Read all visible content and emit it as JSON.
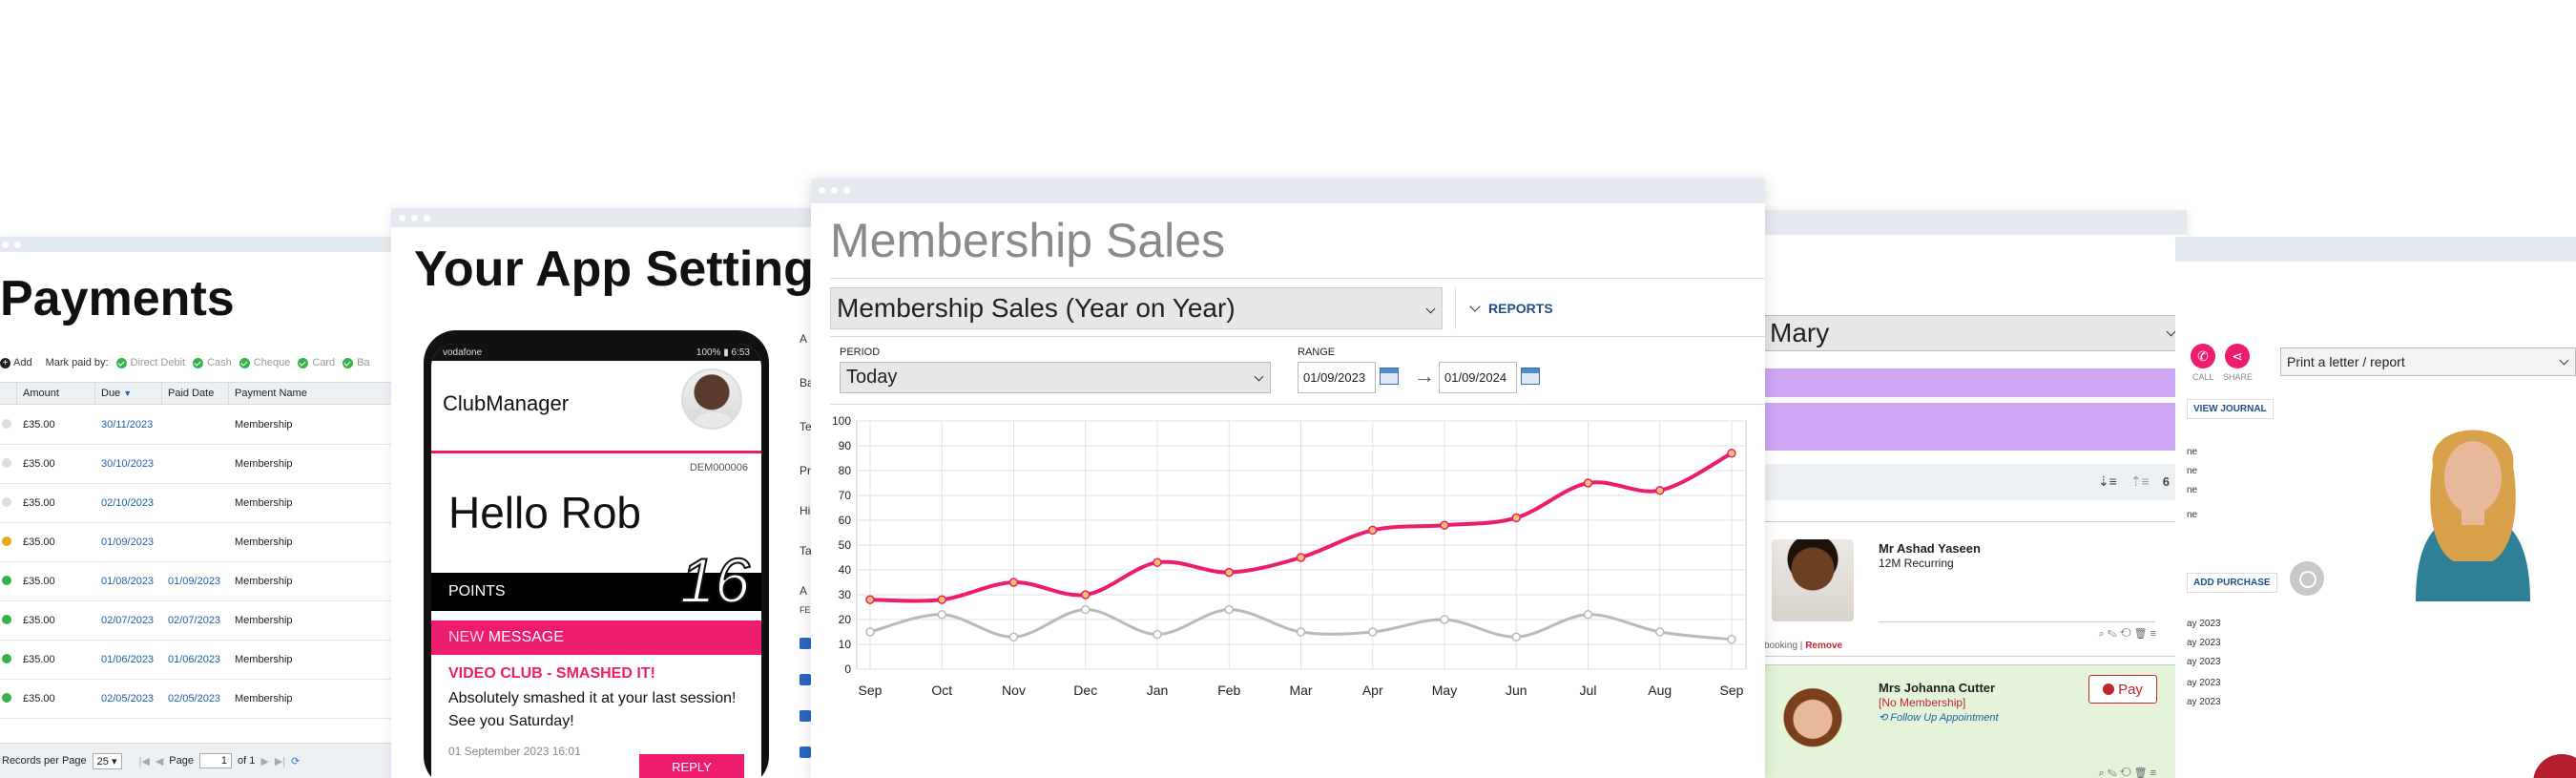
{
  "payments": {
    "title": "Payments",
    "toolbar": {
      "add_label": "Add",
      "mark_paid_label": "Mark paid by:",
      "methods": [
        "Direct Debit",
        "Cash",
        "Cheque",
        "Card",
        "Ba"
      ]
    },
    "columns": [
      "Amount",
      "Due",
      "Paid Date",
      "Payment Name"
    ],
    "rows": [
      {
        "status": "none",
        "amount": "£35.00",
        "due": "30/11/2023",
        "paid": "",
        "name": "Membership"
      },
      {
        "status": "none",
        "amount": "£35.00",
        "due": "30/10/2023",
        "paid": "",
        "name": "Membership"
      },
      {
        "status": "none",
        "amount": "£35.00",
        "due": "02/10/2023",
        "paid": "",
        "name": "Membership"
      },
      {
        "status": "pending",
        "amount": "£35.00",
        "due": "01/09/2023",
        "paid": "",
        "name": "Membership"
      },
      {
        "status": "paid",
        "amount": "£35.00",
        "due": "01/08/2023",
        "paid": "01/09/2023",
        "name": "Membership"
      },
      {
        "status": "paid",
        "amount": "£35.00",
        "due": "02/07/2023",
        "paid": "02/07/2023",
        "name": "Membership"
      },
      {
        "status": "paid",
        "amount": "£35.00",
        "due": "01/06/2023",
        "paid": "01/06/2023",
        "name": "Membership"
      },
      {
        "status": "paid",
        "amount": "£35.00",
        "due": "02/05/2023",
        "paid": "02/05/2023",
        "name": "Membership"
      }
    ],
    "footer": {
      "records_label": "Records per Page",
      "records_value": "25",
      "page_label": "Page",
      "page_value": "1",
      "of_label": "of 1"
    },
    "status_colors": {
      "none": "#dddddd",
      "pending": "#e3a81b",
      "paid": "#36b24a"
    }
  },
  "app_settings": {
    "title": "Your App Settings",
    "phone": {
      "carrier": "vodafone",
      "battery": "100%",
      "time": "6:53",
      "logo": "ClubManager",
      "member_id": "DEM000006",
      "greeting": "Hello Rob",
      "points_label": "POINTS",
      "points_value": "16",
      "message_new": "NEW",
      "message_label": "MESSAGE",
      "message_title": "VIDEO CLUB - SMASHED IT!",
      "message_body": "Absolutely smashed it at your last session! See you Saturday!",
      "message_date": "01 September 2023 16:01",
      "reply_label": "REPLY"
    },
    "side_labels": [
      "A",
      "Ba",
      "Te",
      "Pr",
      "Hi",
      "Ta",
      "A",
      "FE"
    ]
  },
  "sales": {
    "title": "Membership Sales",
    "report_select": "Membership Sales (Year on Year)",
    "reports_label": "REPORTS",
    "period_label": "PERIOD",
    "period_value": "Today",
    "range_label": "RANGE",
    "range_from": "01/09/2023",
    "range_to": "01/09/2024",
    "range_arrow": "→"
  },
  "chart_data": {
    "type": "line",
    "categories": [
      "Sep",
      "Oct",
      "Nov",
      "Dec",
      "Jan",
      "Feb",
      "Mar",
      "Apr",
      "May",
      "Jun",
      "Jul",
      "Aug",
      "Sep"
    ],
    "series": [
      {
        "values": [
          28,
          28,
          35,
          30,
          43,
          39,
          45,
          56,
          58,
          61,
          75,
          72,
          87
        ],
        "color": "#ed1c6c"
      },
      {
        "values": [
          15,
          22,
          13,
          24,
          14,
          24,
          15,
          15,
          20,
          13,
          22,
          15,
          12
        ],
        "color": "#b9b9b9"
      }
    ],
    "title": "",
    "xlabel": "",
    "ylabel": "",
    "ylim": [
      0,
      100
    ],
    "yticks": [
      0,
      10,
      20,
      30,
      40,
      50,
      60,
      70,
      80,
      90,
      100
    ],
    "grid": true
  },
  "member_panel": {
    "select_value": "Mary",
    "sort_count": "6",
    "cards": [
      {
        "name": "Mr Ashad Yaseen",
        "sub": "12M Recurring",
        "footer_text": "booking",
        "footer_link": "Remove"
      },
      {
        "name": "Mrs Johanna Cutter",
        "sub": "[No Membership]",
        "sub2": "Follow Up Appointment",
        "pay_label": "Pay"
      }
    ]
  },
  "right_panel": {
    "call_label": "CALL",
    "share_label": "SHARE",
    "print_select": "Print a letter / report",
    "view_journal": "VIEW JOURNAL",
    "add_purchase": "ADD PURCHASE",
    "side_items": [
      "ne",
      "ne",
      "ne",
      "ne"
    ],
    "dates": [
      "ay 2023",
      "ay 2023",
      "ay 2023",
      "ay 2023",
      "ay 2023"
    ]
  }
}
